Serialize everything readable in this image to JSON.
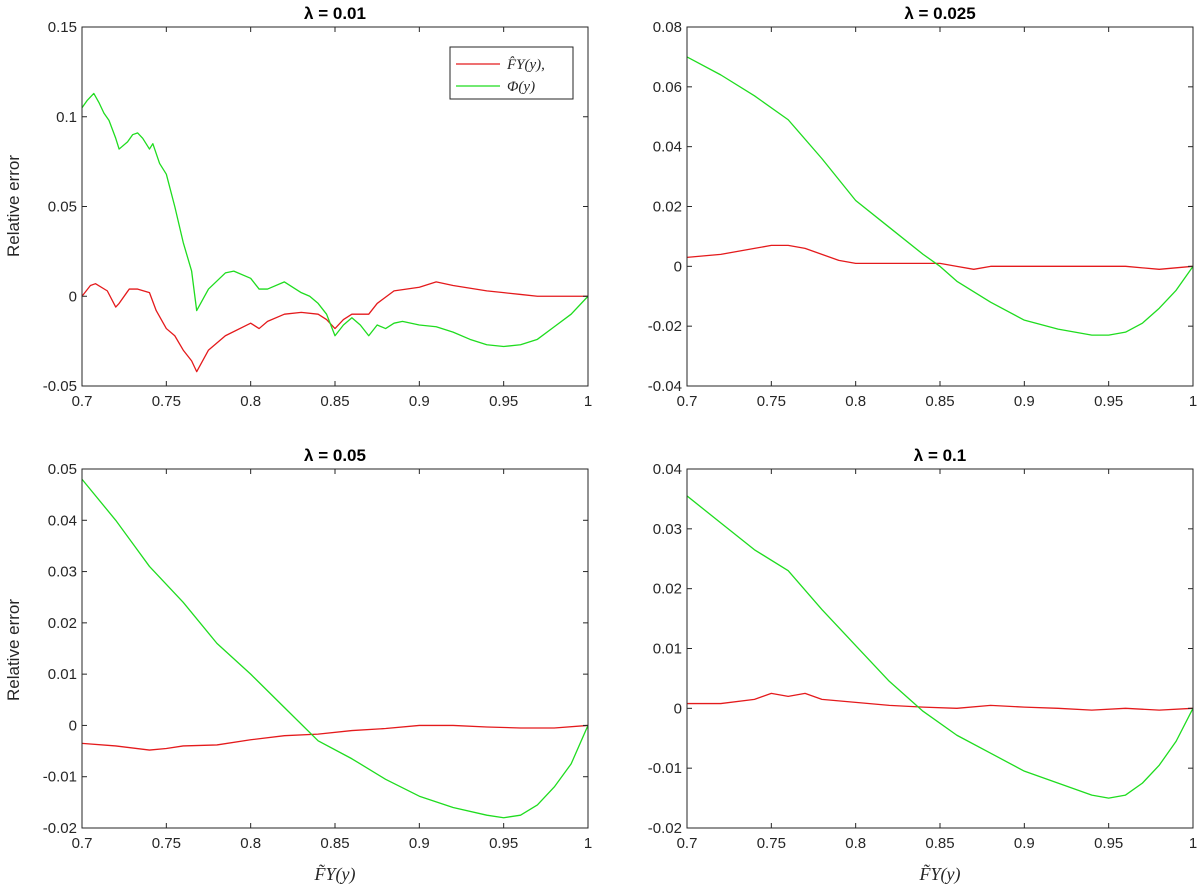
{
  "figure": {
    "ylabel_left": "Relative error",
    "xlabel_bottom": "F̃Y(y)"
  },
  "legend": {
    "entries": [
      "F̂Y(y),",
      "Φ(y)"
    ]
  },
  "colors": {
    "red": "#e41a1c",
    "green": "#1fdc1f",
    "axis": "#262626"
  },
  "chart_data": [
    {
      "type": "line",
      "title": "λ = 0.01",
      "xlabel": "",
      "ylabel": "Relative error",
      "xlim": [
        0.7,
        1
      ],
      "ylim": [
        -0.05,
        0.15
      ],
      "xticks": [
        0.7,
        0.75,
        0.8,
        0.85,
        0.9,
        0.95,
        1
      ],
      "xtick_labels": [
        "0.7",
        "0.75",
        "0.8",
        "0.85",
        "0.9",
        "0.95",
        "1"
      ],
      "yticks": [
        -0.05,
        0,
        0.05,
        0.1,
        0.15
      ],
      "ytick_labels": [
        "-0.05",
        "0",
        "0.05",
        "0.1",
        "0.15"
      ],
      "legend": "top-right",
      "grid": false,
      "series": [
        {
          "name": "F̂Y(y),",
          "color": "#e41a1c",
          "x": [
            0.7,
            0.705,
            0.708,
            0.715,
            0.72,
            0.722,
            0.728,
            0.733,
            0.74,
            0.744,
            0.75,
            0.755,
            0.76,
            0.765,
            0.768,
            0.775,
            0.785,
            0.8,
            0.805,
            0.81,
            0.82,
            0.83,
            0.84,
            0.845,
            0.85,
            0.855,
            0.86,
            0.87,
            0.875,
            0.885,
            0.9,
            0.91,
            0.92,
            0.94,
            0.95,
            0.96,
            0.97,
            0.98,
            0.99,
            1.0
          ],
          "y": [
            0.0,
            0.006,
            0.007,
            0.003,
            -0.006,
            -0.004,
            0.004,
            0.004,
            0.002,
            -0.008,
            -0.018,
            -0.022,
            -0.03,
            -0.036,
            -0.042,
            -0.03,
            -0.022,
            -0.015,
            -0.018,
            -0.014,
            -0.01,
            -0.009,
            -0.01,
            -0.013,
            -0.018,
            -0.013,
            -0.01,
            -0.01,
            -0.004,
            0.003,
            0.005,
            0.008,
            0.006,
            0.003,
            0.002,
            0.001,
            0.0,
            0.0,
            0.0,
            0.0
          ]
        },
        {
          "name": "Φ(y)",
          "color": "#1fdc1f",
          "x": [
            0.7,
            0.703,
            0.707,
            0.71,
            0.713,
            0.716,
            0.72,
            0.722,
            0.727,
            0.73,
            0.733,
            0.736,
            0.74,
            0.742,
            0.746,
            0.75,
            0.755,
            0.76,
            0.765,
            0.768,
            0.775,
            0.785,
            0.79,
            0.8,
            0.805,
            0.81,
            0.82,
            0.83,
            0.835,
            0.84,
            0.845,
            0.85,
            0.855,
            0.86,
            0.865,
            0.87,
            0.875,
            0.88,
            0.885,
            0.89,
            0.9,
            0.91,
            0.92,
            0.93,
            0.94,
            0.95,
            0.96,
            0.97,
            0.98,
            0.99,
            1.0
          ],
          "y": [
            0.105,
            0.109,
            0.113,
            0.108,
            0.102,
            0.098,
            0.088,
            0.082,
            0.086,
            0.09,
            0.091,
            0.088,
            0.082,
            0.085,
            0.074,
            0.068,
            0.05,
            0.03,
            0.014,
            -0.008,
            0.004,
            0.013,
            0.014,
            0.01,
            0.004,
            0.004,
            0.008,
            0.002,
            0.0,
            -0.004,
            -0.01,
            -0.022,
            -0.016,
            -0.012,
            -0.016,
            -0.022,
            -0.016,
            -0.018,
            -0.015,
            -0.014,
            -0.016,
            -0.017,
            -0.02,
            -0.024,
            -0.027,
            -0.028,
            -0.027,
            -0.024,
            -0.017,
            -0.01,
            0.0
          ]
        }
      ]
    },
    {
      "type": "line",
      "title": "λ = 0.025",
      "xlabel": "",
      "ylabel": "",
      "xlim": [
        0.7,
        1
      ],
      "ylim": [
        -0.04,
        0.08
      ],
      "xticks": [
        0.7,
        0.75,
        0.8,
        0.85,
        0.9,
        0.95,
        1
      ],
      "xtick_labels": [
        "0.7",
        "0.75",
        "0.8",
        "0.85",
        "0.9",
        "0.95",
        "1"
      ],
      "yticks": [
        -0.04,
        -0.02,
        0,
        0.02,
        0.04,
        0.06,
        0.08
      ],
      "ytick_labels": [
        "-0.04",
        "-0.02",
        "0",
        "0.02",
        "0.04",
        "0.06",
        "0.08"
      ],
      "grid": false,
      "series": [
        {
          "name": "F̂Y(y),",
          "color": "#e41a1c",
          "x": [
            0.7,
            0.72,
            0.74,
            0.75,
            0.76,
            0.77,
            0.78,
            0.79,
            0.8,
            0.82,
            0.84,
            0.85,
            0.86,
            0.87,
            0.88,
            0.9,
            0.92,
            0.94,
            0.96,
            0.98,
            1.0
          ],
          "y": [
            0.003,
            0.004,
            0.006,
            0.007,
            0.007,
            0.006,
            0.004,
            0.002,
            0.001,
            0.001,
            0.001,
            0.001,
            0.0,
            -0.001,
            0.0,
            0.0,
            0.0,
            0.0,
            0.0,
            -0.001,
            0.0
          ]
        },
        {
          "name": "Φ(y)",
          "color": "#1fdc1f",
          "x": [
            0.7,
            0.72,
            0.74,
            0.76,
            0.78,
            0.8,
            0.82,
            0.84,
            0.85,
            0.86,
            0.88,
            0.9,
            0.92,
            0.94,
            0.95,
            0.96,
            0.97,
            0.98,
            0.99,
            1.0
          ],
          "y": [
            0.07,
            0.064,
            0.057,
            0.049,
            0.036,
            0.022,
            0.013,
            0.004,
            0.0,
            -0.005,
            -0.012,
            -0.018,
            -0.021,
            -0.023,
            -0.023,
            -0.022,
            -0.019,
            -0.014,
            -0.008,
            0.0
          ]
        }
      ]
    },
    {
      "type": "line",
      "title": "λ = 0.05",
      "xlabel": "F̃Y(y)",
      "ylabel": "Relative error",
      "xlim": [
        0.7,
        1
      ],
      "ylim": [
        -0.02,
        0.05
      ],
      "xticks": [
        0.7,
        0.75,
        0.8,
        0.85,
        0.9,
        0.95,
        1
      ],
      "xtick_labels": [
        "0.7",
        "0.75",
        "0.8",
        "0.85",
        "0.9",
        "0.95",
        "1"
      ],
      "yticks": [
        -0.02,
        -0.01,
        0,
        0.01,
        0.02,
        0.03,
        0.04,
        0.05
      ],
      "ytick_labels": [
        "-0.02",
        "-0.01",
        "0",
        "0.01",
        "0.02",
        "0.03",
        "0.04",
        "0.05"
      ],
      "grid": false,
      "series": [
        {
          "name": "F̂Y(y),",
          "color": "#e41a1c",
          "x": [
            0.7,
            0.72,
            0.74,
            0.75,
            0.76,
            0.78,
            0.8,
            0.82,
            0.84,
            0.86,
            0.88,
            0.9,
            0.92,
            0.94,
            0.96,
            0.98,
            1.0
          ],
          "y": [
            -0.0035,
            -0.004,
            -0.0048,
            -0.0045,
            -0.004,
            -0.0038,
            -0.0028,
            -0.002,
            -0.0017,
            -0.001,
            -0.0006,
            0.0,
            0.0,
            -0.0003,
            -0.0005,
            -0.0005,
            0.0
          ]
        },
        {
          "name": "Φ(y)",
          "color": "#1fdc1f",
          "x": [
            0.7,
            0.72,
            0.74,
            0.76,
            0.78,
            0.8,
            0.82,
            0.84,
            0.86,
            0.88,
            0.9,
            0.92,
            0.94,
            0.95,
            0.96,
            0.97,
            0.98,
            0.99,
            1.0
          ],
          "y": [
            0.048,
            0.04,
            0.031,
            0.024,
            0.016,
            0.01,
            0.0035,
            -0.003,
            -0.0065,
            -0.0105,
            -0.0138,
            -0.016,
            -0.0175,
            -0.018,
            -0.0175,
            -0.0155,
            -0.012,
            -0.0075,
            0.0
          ]
        }
      ]
    },
    {
      "type": "line",
      "title": "λ = 0.1",
      "xlabel": "F̃Y(y)",
      "ylabel": "",
      "xlim": [
        0.7,
        1
      ],
      "ylim": [
        -0.02,
        0.04
      ],
      "xticks": [
        0.7,
        0.75,
        0.8,
        0.85,
        0.9,
        0.95,
        1
      ],
      "xtick_labels": [
        "0.7",
        "0.75",
        "0.8",
        "0.85",
        "0.9",
        "0.95",
        "1"
      ],
      "yticks": [
        -0.02,
        -0.01,
        0,
        0.01,
        0.02,
        0.03,
        0.04
      ],
      "ytick_labels": [
        "-0.02",
        "-0.01",
        "0",
        "0.01",
        "0.02",
        "0.03",
        "0.04"
      ],
      "grid": false,
      "series": [
        {
          "name": "F̂Y(y),",
          "color": "#e41a1c",
          "x": [
            0.7,
            0.72,
            0.74,
            0.75,
            0.76,
            0.77,
            0.78,
            0.8,
            0.82,
            0.84,
            0.86,
            0.88,
            0.9,
            0.92,
            0.94,
            0.96,
            0.98,
            1.0
          ],
          "y": [
            0.0008,
            0.0008,
            0.0015,
            0.0025,
            0.002,
            0.0025,
            0.0015,
            0.001,
            0.0005,
            0.0002,
            0.0,
            0.0005,
            0.0002,
            0.0,
            -0.0003,
            0.0,
            -0.0003,
            0.0
          ]
        },
        {
          "name": "Φ(y)",
          "color": "#1fdc1f",
          "x": [
            0.7,
            0.72,
            0.74,
            0.76,
            0.78,
            0.8,
            0.82,
            0.84,
            0.86,
            0.88,
            0.9,
            0.92,
            0.94,
            0.95,
            0.96,
            0.97,
            0.98,
            0.99,
            1.0
          ],
          "y": [
            0.0355,
            0.031,
            0.0265,
            0.023,
            0.0165,
            0.0105,
            0.0045,
            -0.0005,
            -0.0045,
            -0.0075,
            -0.0105,
            -0.0125,
            -0.0145,
            -0.015,
            -0.0145,
            -0.0125,
            -0.0095,
            -0.0055,
            0.0
          ]
        }
      ]
    }
  ]
}
